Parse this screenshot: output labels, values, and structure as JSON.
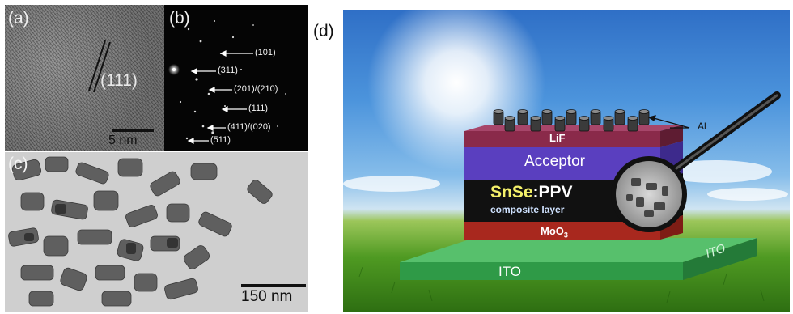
{
  "panels": {
    "a": {
      "label": "(a)",
      "plane_label": "(111)",
      "scale_bar": "5 nm"
    },
    "b": {
      "label": "(b)",
      "rings": [
        "(101)",
        "(311)",
        "(201)/(210)",
        "(111)",
        "(411)/(020)",
        "(511)"
      ]
    },
    "c": {
      "label": "(c)",
      "scale_bar": "150 nm"
    },
    "d": {
      "label": "(d)",
      "layers": {
        "top_contact": "Al",
        "lif": "LiF",
        "acceptor": "Acceptor",
        "composite_snse": "SnSe",
        "composite_sep": ":",
        "composite_ppv": "PPV",
        "composite_sub": "composite layer",
        "moo3_base": "MoO",
        "moo3_sub": "3",
        "ito_main": "ITO",
        "ito_side": "ITO"
      },
      "colors": {
        "lif": "#8a2a4a",
        "acceptor": "#5a3fbf",
        "composite": "#111111",
        "moo3": "#a8281e",
        "ito": "#3daa55",
        "snse_text": "#f4f06a"
      }
    }
  }
}
